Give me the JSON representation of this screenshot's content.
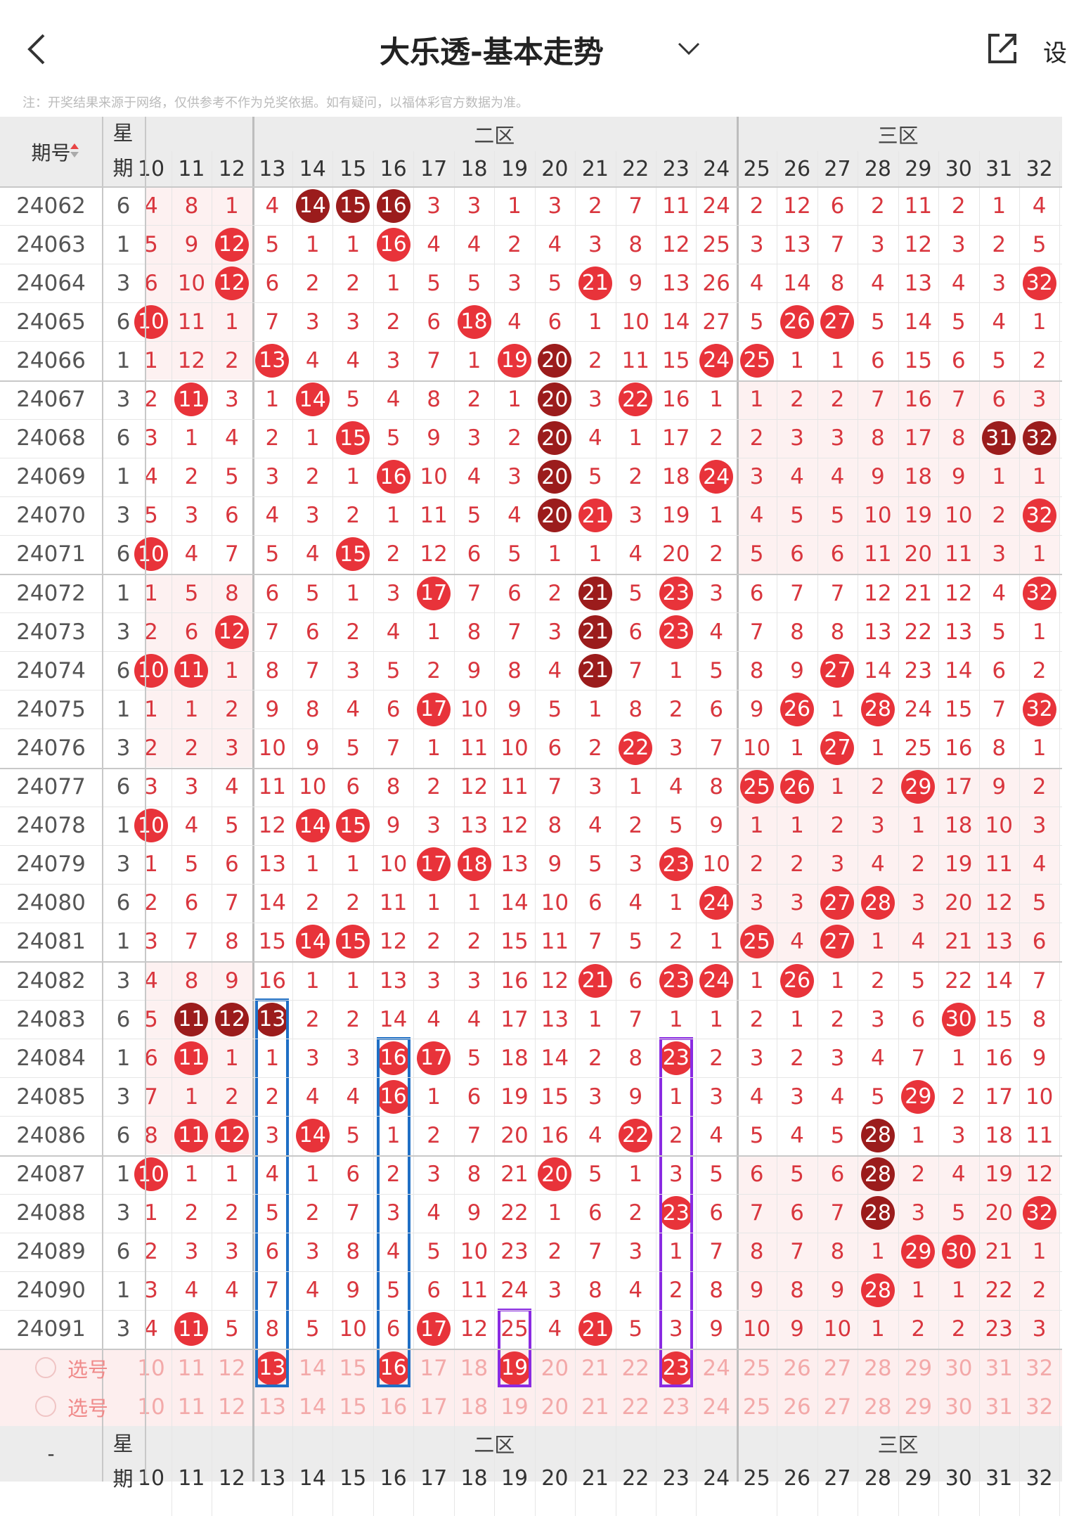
{
  "header": {
    "title": "大乐透-基本走势",
    "settings": "设"
  },
  "notice": "注：开奖结果来源于网络，仅供参考不作为兑奖依据。如有疑问，以福体彩官方数据为准。",
  "table": {
    "period_label": "期号",
    "week_label": "星期",
    "zones": [
      {
        "label": "二区",
        "from": 3,
        "to": 14
      },
      {
        "label": "三区",
        "from": 15,
        "to": 22
      }
    ],
    "columns": [
      10,
      11,
      12,
      13,
      14,
      15,
      16,
      17,
      18,
      19,
      20,
      21,
      22,
      23,
      24,
      25,
      26,
      27,
      28,
      29,
      30,
      31,
      32
    ],
    "rows": [
      {
        "period": 24062,
        "week": 6,
        "cells": [
          4,
          8,
          1,
          4,
          14,
          15,
          16,
          3,
          3,
          1,
          3,
          2,
          7,
          11,
          24,
          2,
          12,
          6,
          2,
          11,
          2,
          1,
          4
        ],
        "red": [],
        "dark": [
          4,
          5,
          6
        ]
      },
      {
        "period": 24063,
        "week": 1,
        "cells": [
          5,
          9,
          12,
          5,
          1,
          1,
          16,
          4,
          4,
          2,
          4,
          3,
          8,
          12,
          25,
          3,
          13,
          7,
          3,
          12,
          3,
          2,
          5
        ],
        "red": [
          2,
          6
        ],
        "dark": []
      },
      {
        "period": 24064,
        "week": 3,
        "cells": [
          6,
          10,
          12,
          6,
          2,
          2,
          1,
          5,
          5,
          3,
          5,
          21,
          9,
          13,
          26,
          4,
          14,
          8,
          4,
          13,
          4,
          3,
          32
        ],
        "red": [
          2,
          11,
          22
        ],
        "dark": []
      },
      {
        "period": 24065,
        "week": 6,
        "cells": [
          10,
          11,
          1,
          7,
          3,
          3,
          2,
          6,
          18,
          4,
          6,
          1,
          10,
          14,
          27,
          5,
          26,
          27,
          5,
          14,
          5,
          4,
          1
        ],
        "red": [
          0,
          8,
          16,
          17
        ],
        "dark": []
      },
      {
        "period": 24066,
        "week": 1,
        "cells": [
          1,
          12,
          2,
          13,
          4,
          4,
          3,
          7,
          1,
          19,
          20,
          2,
          11,
          15,
          24,
          25,
          1,
          1,
          6,
          15,
          6,
          5,
          2
        ],
        "red": [
          3,
          9,
          14,
          15
        ],
        "dark": [
          10
        ]
      },
      {
        "period": 24067,
        "week": 3,
        "cells": [
          2,
          11,
          3,
          1,
          14,
          5,
          4,
          8,
          2,
          1,
          20,
          3,
          22,
          16,
          1,
          1,
          2,
          2,
          7,
          16,
          7,
          6,
          3
        ],
        "red": [
          1,
          4,
          12
        ],
        "dark": [
          10
        ]
      },
      {
        "period": 24068,
        "week": 6,
        "cells": [
          3,
          1,
          4,
          2,
          1,
          15,
          5,
          9,
          3,
          2,
          20,
          4,
          1,
          17,
          2,
          2,
          3,
          3,
          8,
          17,
          8,
          31,
          32
        ],
        "red": [
          5
        ],
        "dark": [
          10,
          21,
          22
        ]
      },
      {
        "period": 24069,
        "week": 1,
        "cells": [
          4,
          2,
          5,
          3,
          2,
          1,
          16,
          10,
          4,
          3,
          20,
          5,
          2,
          18,
          24,
          3,
          4,
          4,
          9,
          18,
          9,
          1,
          1
        ],
        "red": [
          6,
          14
        ],
        "dark": [
          10
        ]
      },
      {
        "period": 24070,
        "week": 3,
        "cells": [
          5,
          3,
          6,
          4,
          3,
          2,
          1,
          11,
          5,
          4,
          20,
          21,
          3,
          19,
          1,
          4,
          5,
          5,
          10,
          19,
          10,
          2,
          32
        ],
        "red": [
          11,
          22
        ],
        "dark": [
          10
        ]
      },
      {
        "period": 24071,
        "week": 6,
        "cells": [
          10,
          4,
          7,
          5,
          4,
          15,
          2,
          12,
          6,
          5,
          1,
          1,
          4,
          20,
          2,
          5,
          6,
          6,
          11,
          20,
          11,
          3,
          1
        ],
        "red": [
          0,
          5
        ],
        "dark": []
      },
      {
        "period": 24072,
        "week": 1,
        "cells": [
          1,
          5,
          8,
          6,
          5,
          1,
          3,
          17,
          7,
          6,
          2,
          21,
          5,
          23,
          3,
          6,
          7,
          7,
          12,
          21,
          12,
          4,
          32
        ],
        "red": [
          7,
          13,
          22
        ],
        "dark": [
          11
        ]
      },
      {
        "period": 24073,
        "week": 3,
        "cells": [
          2,
          6,
          12,
          7,
          6,
          2,
          4,
          1,
          8,
          7,
          3,
          21,
          6,
          23,
          4,
          7,
          8,
          8,
          13,
          22,
          13,
          5,
          1
        ],
        "red": [
          2,
          13
        ],
        "dark": [
          11
        ]
      },
      {
        "period": 24074,
        "week": 6,
        "cells": [
          10,
          11,
          1,
          8,
          7,
          3,
          5,
          2,
          9,
          8,
          4,
          21,
          7,
          1,
          5,
          8,
          9,
          27,
          14,
          23,
          14,
          6,
          2
        ],
        "red": [
          0,
          1,
          17
        ],
        "dark": [
          11
        ]
      },
      {
        "period": 24075,
        "week": 1,
        "cells": [
          1,
          1,
          2,
          9,
          8,
          4,
          6,
          17,
          10,
          9,
          5,
          1,
          8,
          2,
          6,
          9,
          26,
          1,
          28,
          24,
          15,
          7,
          32
        ],
        "red": [
          7,
          16,
          18,
          22
        ],
        "dark": []
      },
      {
        "period": 24076,
        "week": 3,
        "cells": [
          2,
          2,
          3,
          10,
          9,
          5,
          7,
          1,
          11,
          10,
          6,
          2,
          22,
          3,
          7,
          10,
          1,
          27,
          1,
          25,
          16,
          8,
          1
        ],
        "red": [
          12,
          17
        ],
        "dark": []
      },
      {
        "period": 24077,
        "week": 6,
        "cells": [
          3,
          3,
          4,
          11,
          10,
          6,
          8,
          2,
          12,
          11,
          7,
          3,
          1,
          4,
          8,
          25,
          26,
          1,
          2,
          29,
          17,
          9,
          2
        ],
        "red": [
          15,
          16,
          19
        ],
        "dark": []
      },
      {
        "period": 24078,
        "week": 1,
        "cells": [
          10,
          4,
          5,
          12,
          14,
          15,
          9,
          3,
          13,
          12,
          8,
          4,
          2,
          5,
          9,
          1,
          1,
          2,
          3,
          1,
          18,
          10,
          3
        ],
        "red": [
          0,
          4,
          5
        ],
        "dark": []
      },
      {
        "period": 24079,
        "week": 3,
        "cells": [
          1,
          5,
          6,
          13,
          1,
          1,
          10,
          17,
          18,
          13,
          9,
          5,
          3,
          23,
          10,
          2,
          2,
          3,
          4,
          2,
          19,
          11,
          4
        ],
        "red": [
          7,
          8,
          13
        ],
        "dark": []
      },
      {
        "period": 24080,
        "week": 6,
        "cells": [
          2,
          6,
          7,
          14,
          2,
          2,
          11,
          1,
          1,
          14,
          10,
          6,
          4,
          1,
          24,
          3,
          3,
          27,
          28,
          3,
          20,
          12,
          5
        ],
        "red": [
          14,
          17,
          18
        ],
        "dark": []
      },
      {
        "period": 24081,
        "week": 1,
        "cells": [
          3,
          7,
          8,
          15,
          14,
          15,
          12,
          2,
          2,
          15,
          11,
          7,
          5,
          2,
          1,
          25,
          4,
          27,
          1,
          4,
          21,
          13,
          6
        ],
        "red": [
          4,
          5,
          15,
          17
        ],
        "dark": []
      },
      {
        "period": 24082,
        "week": 3,
        "cells": [
          4,
          8,
          9,
          16,
          1,
          1,
          13,
          3,
          3,
          16,
          12,
          21,
          6,
          23,
          24,
          1,
          26,
          1,
          2,
          5,
          22,
          14,
          7
        ],
        "red": [
          11,
          13,
          14,
          16
        ],
        "dark": []
      },
      {
        "period": 24083,
        "week": 6,
        "cells": [
          5,
          11,
          12,
          13,
          2,
          2,
          14,
          4,
          4,
          17,
          13,
          1,
          7,
          1,
          1,
          2,
          1,
          2,
          3,
          6,
          30,
          15,
          8
        ],
        "red": [
          20
        ],
        "dark": [
          1,
          2,
          3
        ]
      },
      {
        "period": 24084,
        "week": 1,
        "cells": [
          6,
          11,
          1,
          1,
          3,
          3,
          16,
          17,
          5,
          18,
          14,
          2,
          8,
          23,
          2,
          3,
          2,
          3,
          4,
          7,
          1,
          16,
          9
        ],
        "red": [
          1,
          6,
          7,
          13
        ],
        "dark": []
      },
      {
        "period": 24085,
        "week": 3,
        "cells": [
          7,
          1,
          2,
          2,
          4,
          4,
          16,
          1,
          6,
          19,
          15,
          3,
          9,
          1,
          3,
          4,
          3,
          4,
          5,
          29,
          2,
          17,
          10
        ],
        "red": [
          6,
          19
        ],
        "dark": []
      },
      {
        "period": 24086,
        "week": 6,
        "cells": [
          8,
          11,
          12,
          3,
          14,
          5,
          1,
          2,
          7,
          20,
          16,
          4,
          22,
          2,
          4,
          5,
          4,
          5,
          28,
          1,
          3,
          18,
          11
        ],
        "red": [
          1,
          2,
          4,
          12
        ],
        "dark": [
          18
        ]
      },
      {
        "period": 24087,
        "week": 1,
        "cells": [
          10,
          1,
          1,
          4,
          1,
          6,
          2,
          3,
          8,
          21,
          20,
          5,
          1,
          3,
          5,
          6,
          5,
          6,
          28,
          2,
          4,
          19,
          12
        ],
        "red": [
          0,
          10
        ],
        "dark": [
          18
        ]
      },
      {
        "period": 24088,
        "week": 3,
        "cells": [
          1,
          2,
          2,
          5,
          2,
          7,
          3,
          4,
          9,
          22,
          1,
          6,
          2,
          23,
          6,
          7,
          6,
          7,
          28,
          3,
          5,
          20,
          32
        ],
        "red": [
          13,
          22
        ],
        "dark": [
          18
        ]
      },
      {
        "period": 24089,
        "week": 6,
        "cells": [
          2,
          3,
          3,
          6,
          3,
          8,
          4,
          5,
          10,
          23,
          2,
          7,
          3,
          1,
          7,
          8,
          7,
          8,
          1,
          29,
          30,
          21,
          1
        ],
        "red": [
          19,
          20
        ],
        "dark": []
      },
      {
        "period": 24090,
        "week": 1,
        "cells": [
          3,
          4,
          4,
          7,
          4,
          9,
          5,
          6,
          11,
          24,
          3,
          8,
          4,
          2,
          8,
          9,
          8,
          9,
          28,
          1,
          1,
          22,
          2
        ],
        "red": [
          18
        ],
        "dark": []
      },
      {
        "period": 24091,
        "week": 3,
        "cells": [
          4,
          11,
          5,
          8,
          5,
          10,
          6,
          17,
          12,
          25,
          4,
          21,
          5,
          3,
          9,
          10,
          9,
          10,
          1,
          2,
          2,
          23,
          3
        ],
        "red": [
          1,
          7,
          11
        ],
        "dark": []
      }
    ],
    "select_rows": [
      {
        "label": "选号",
        "picked": [
          3,
          6,
          9,
          13
        ]
      },
      {
        "label": "选号",
        "picked": []
      }
    ],
    "footer": {
      "period_label": "-"
    }
  }
}
